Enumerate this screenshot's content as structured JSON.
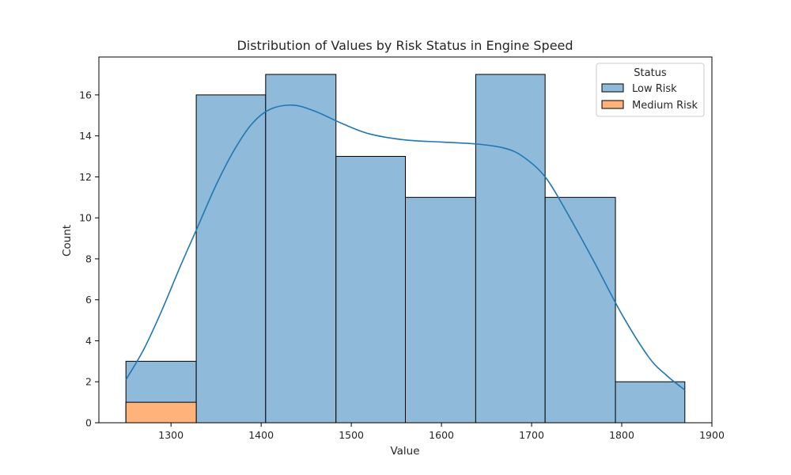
{
  "chart_data": {
    "type": "histogram",
    "title": "Distribution of Values by Risk Status in Engine Speed",
    "xlabel": "Value",
    "ylabel": "Count",
    "xlim": [
      1220,
      1900
    ],
    "ylim": [
      0,
      17.85
    ],
    "xticks": [
      1300,
      1400,
      1500,
      1600,
      1700,
      1800,
      1900
    ],
    "yticks": [
      0,
      2,
      4,
      6,
      8,
      10,
      12,
      14,
      16
    ],
    "bin_edges": [
      1250,
      1328,
      1405,
      1483,
      1560,
      1638,
      1715,
      1793,
      1870
    ],
    "legend": {
      "title": "Status",
      "position": "upper right"
    },
    "series": [
      {
        "name": "Low Risk",
        "color": "#1f77b4",
        "fill": "#8fbad9",
        "counts": [
          3,
          16,
          17,
          13,
          11,
          17,
          11,
          2
        ]
      },
      {
        "name": "Medium Risk",
        "color": "#ff7f0e",
        "fill": "#ffb27a",
        "counts": [
          1,
          0,
          0,
          0,
          0,
          0,
          0,
          0
        ]
      }
    ],
    "kde": {
      "series": "Low Risk",
      "color": "#1f77b4",
      "x": [
        1250,
        1270,
        1290,
        1310,
        1330,
        1350,
        1370,
        1390,
        1410,
        1435,
        1460,
        1490,
        1520,
        1560,
        1600,
        1640,
        1670,
        1690,
        1715,
        1740,
        1770,
        1800,
        1830,
        1850,
        1870
      ],
      "y": [
        2.1,
        3.6,
        5.5,
        7.6,
        9.6,
        11.6,
        13.3,
        14.6,
        15.3,
        15.5,
        15.2,
        14.6,
        14.1,
        13.8,
        13.7,
        13.6,
        13.4,
        13.0,
        12.0,
        10.2,
        7.8,
        5.3,
        3.2,
        2.3,
        1.6
      ]
    },
    "grid": false
  }
}
